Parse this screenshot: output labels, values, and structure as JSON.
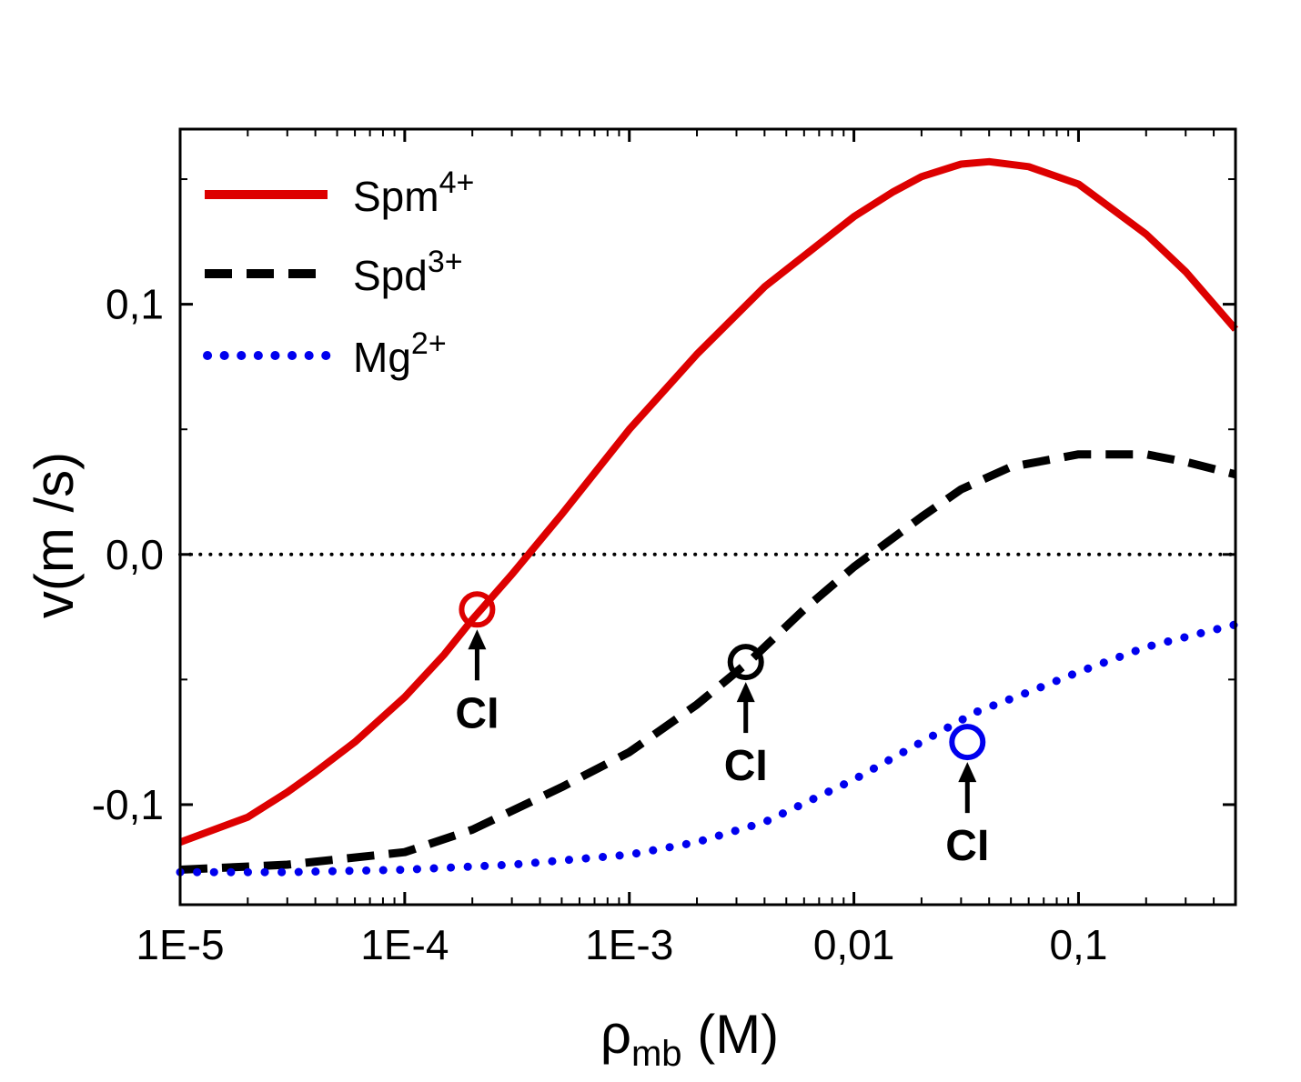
{
  "chart_data": {
    "type": "line",
    "title": "",
    "xlabel": {
      "main": "ρ",
      "sub": "mb",
      "unit": " (M)"
    },
    "ylabel": "v(m /s)",
    "x_scale": "log",
    "xlim": [
      1e-05,
      0.5
    ],
    "ylim": [
      -0.14,
      0.17
    ],
    "x_ticks": [
      {
        "value": 1e-05,
        "label": "1E-5"
      },
      {
        "value": 0.0001,
        "label": "1E-4"
      },
      {
        "value": 0.001,
        "label": "1E-3"
      },
      {
        "value": 0.01,
        "label": "0,01"
      },
      {
        "value": 0.1,
        "label": "0,1"
      }
    ],
    "y_ticks": [
      {
        "value": -0.1,
        "label": "-0,1"
      },
      {
        "value": 0.0,
        "label": "0,0"
      },
      {
        "value": 0.1,
        "label": "0,1"
      }
    ],
    "y_minor_ticks": [
      -0.05,
      0.05,
      0.15
    ],
    "zero_line": 0.0,
    "series": [
      {
        "name": "Spm",
        "superscript": "4+",
        "color": "#dd0000",
        "style": "solid",
        "x": [
          1e-05,
          2e-05,
          3e-05,
          4e-05,
          6e-05,
          0.0001,
          0.00015,
          0.0002,
          0.0003,
          0.0005,
          0.001,
          0.002,
          0.004,
          0.01,
          0.015,
          0.02,
          0.03,
          0.04,
          0.06,
          0.1,
          0.2,
          0.3,
          0.5
        ],
        "y": [
          -0.115,
          -0.105,
          -0.095,
          -0.087,
          -0.075,
          -0.057,
          -0.04,
          -0.026,
          -0.008,
          0.016,
          0.05,
          0.08,
          0.107,
          0.135,
          0.145,
          0.151,
          0.156,
          0.157,
          0.155,
          0.148,
          0.128,
          0.113,
          0.09
        ]
      },
      {
        "name": "Spd",
        "superscript": "3+",
        "color": "#000000",
        "style": "dashed",
        "x": [
          1e-05,
          3e-05,
          0.0001,
          0.0002,
          0.0005,
          0.001,
          0.002,
          0.0035,
          0.006,
          0.01,
          0.02,
          0.03,
          0.05,
          0.1,
          0.2,
          0.3,
          0.5
        ],
        "y": [
          -0.126,
          -0.124,
          -0.119,
          -0.11,
          -0.093,
          -0.079,
          -0.06,
          -0.042,
          -0.022,
          -0.005,
          0.015,
          0.026,
          0.035,
          0.04,
          0.04,
          0.037,
          0.032
        ]
      },
      {
        "name": "Mg",
        "superscript": "2+",
        "color": "#0000ee",
        "style": "dotted",
        "x": [
          1e-05,
          3e-05,
          0.0001,
          0.0003,
          0.001,
          0.002,
          0.004,
          0.01,
          0.02,
          0.035,
          0.06,
          0.1,
          0.2,
          0.5
        ],
        "y": [
          -0.127,
          -0.127,
          -0.126,
          -0.124,
          -0.12,
          -0.115,
          -0.107,
          -0.09,
          -0.075,
          -0.063,
          -0.055,
          -0.047,
          -0.037,
          -0.028
        ]
      }
    ],
    "annotations": [
      {
        "label": "CI",
        "x": 0.00021,
        "y": -0.022,
        "color": "#dd0000"
      },
      {
        "label": "CI",
        "x": 0.0033,
        "y": -0.043,
        "color": "#000000"
      },
      {
        "label": "CI",
        "x": 0.032,
        "y": -0.075,
        "color": "#0000ee"
      }
    ],
    "legend": {
      "position": "top-left"
    }
  }
}
